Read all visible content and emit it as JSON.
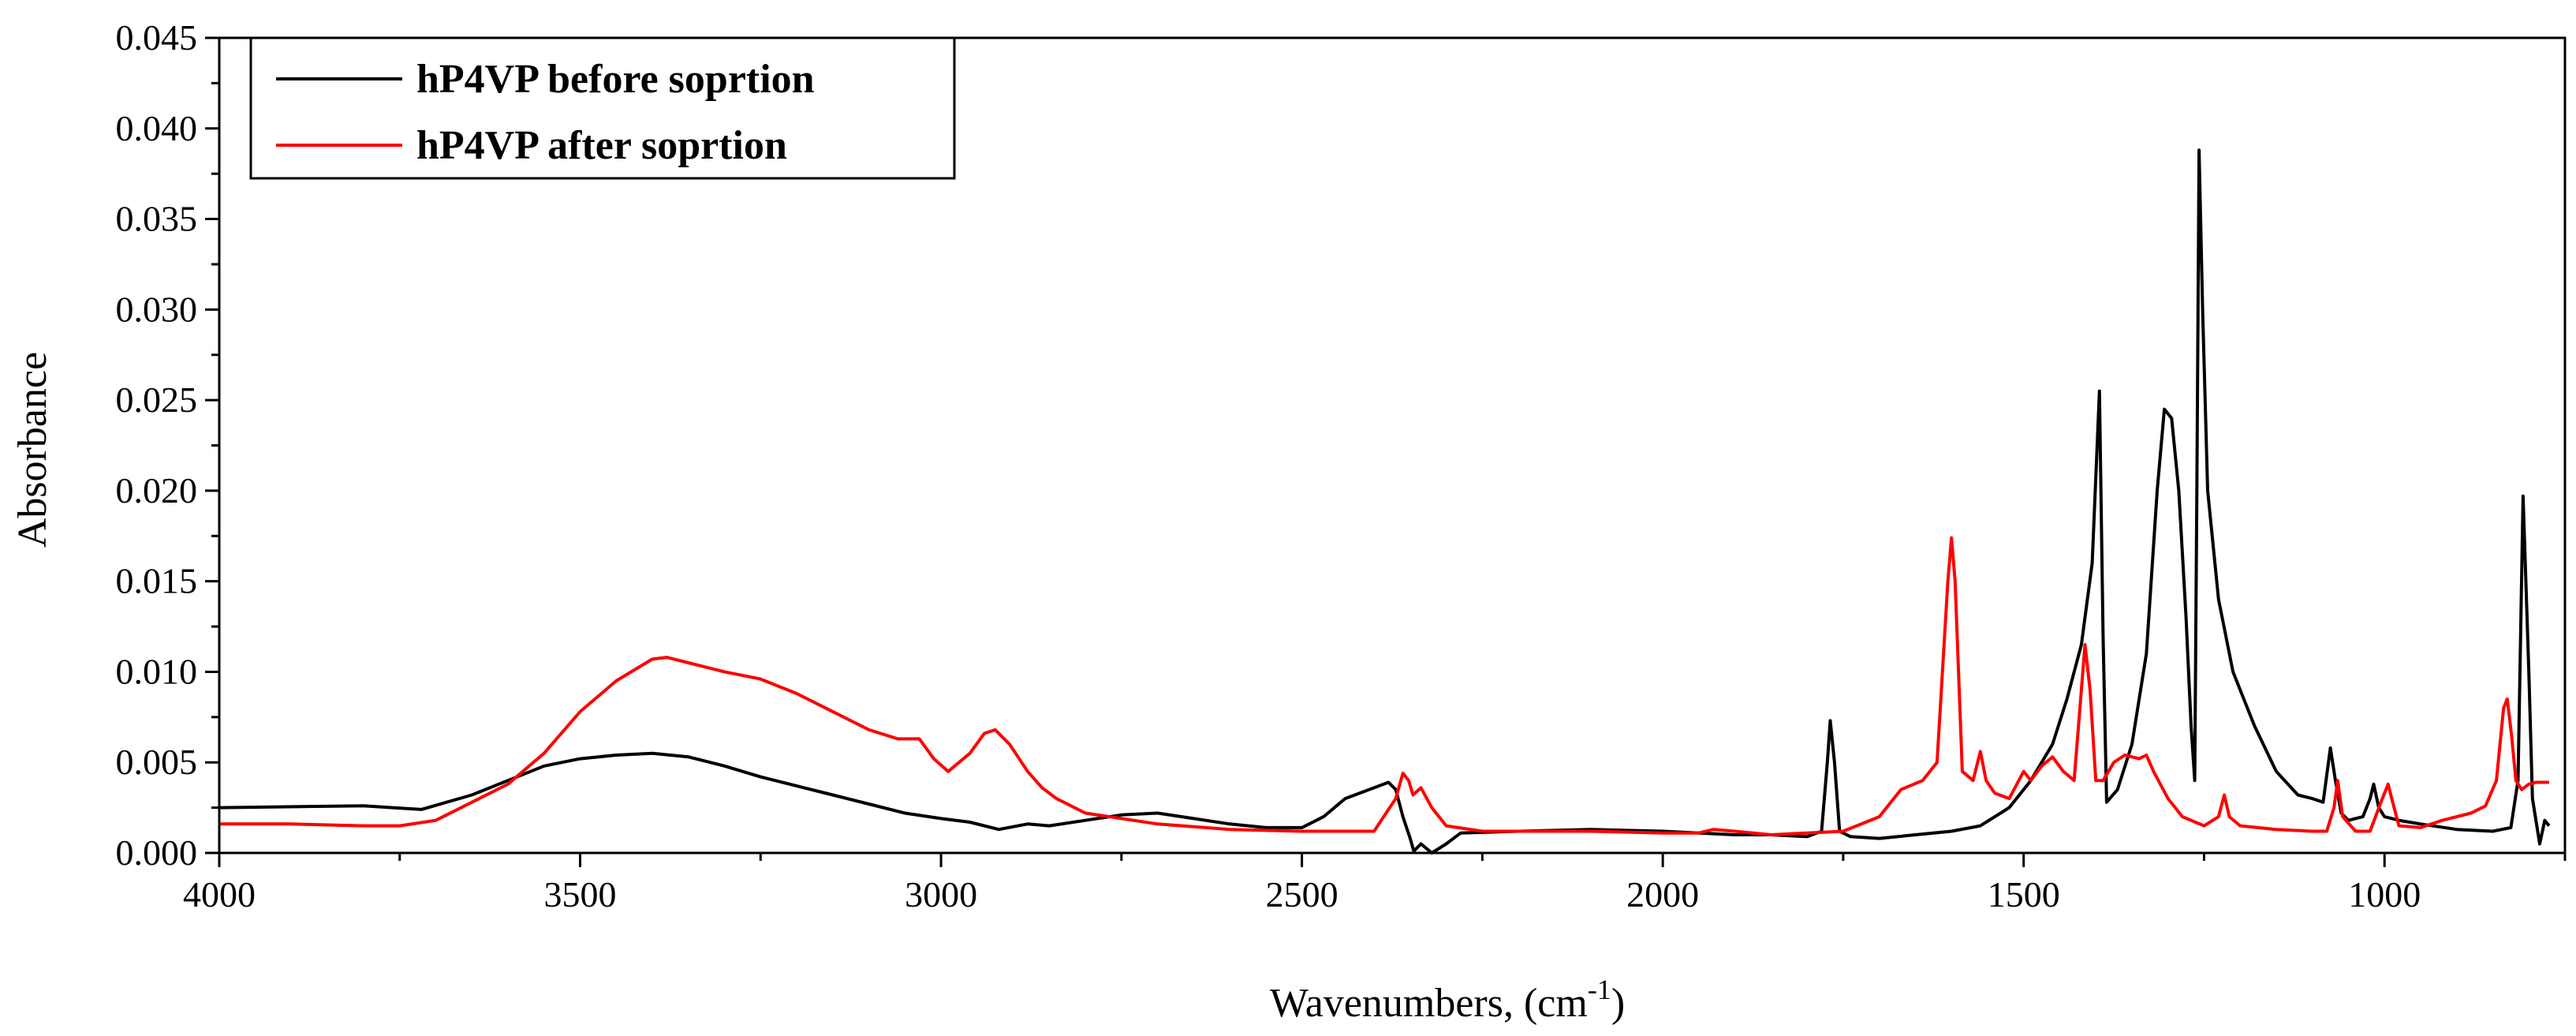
{
  "chart_data": {
    "type": "line",
    "xlabel": "Wavenumbers, (cm",
    "xlabel_sup": "-1",
    "xlabel_suffix": ")",
    "ylabel": "Absorbance",
    "xlim": [
      4000,
      750
    ],
    "ylim": [
      0.0,
      0.045
    ],
    "x_ticks": [
      "4000",
      "3500",
      "3000",
      "2500",
      "2000",
      "1500",
      "1000"
    ],
    "y_ticks": [
      "0.000",
      "0.005",
      "0.010",
      "0.015",
      "0.020",
      "0.025",
      "0.030",
      "0.035",
      "0.040",
      "0.045"
    ],
    "legend_position": "top-left",
    "grid": false,
    "series": [
      {
        "name": "hP4VP before soprtion",
        "color": "#000000",
        "points": [
          [
            4000,
            0.0025
          ],
          [
            3800,
            0.0026
          ],
          [
            3760,
            0.0025
          ],
          [
            3720,
            0.0024
          ],
          [
            3650,
            0.0032
          ],
          [
            3600,
            0.004
          ],
          [
            3550,
            0.0048
          ],
          [
            3500,
            0.0052
          ],
          [
            3450,
            0.0054
          ],
          [
            3400,
            0.0055
          ],
          [
            3350,
            0.0053
          ],
          [
            3300,
            0.0048
          ],
          [
            3250,
            0.0042
          ],
          [
            3200,
            0.0037
          ],
          [
            3150,
            0.0032
          ],
          [
            3100,
            0.0027
          ],
          [
            3050,
            0.0022
          ],
          [
            3000,
            0.0019
          ],
          [
            2960,
            0.0017
          ],
          [
            2920,
            0.0013
          ],
          [
            2880,
            0.0016
          ],
          [
            2850,
            0.0015
          ],
          [
            2800,
            0.0018
          ],
          [
            2750,
            0.0021
          ],
          [
            2700,
            0.0022
          ],
          [
            2650,
            0.0019
          ],
          [
            2600,
            0.0016
          ],
          [
            2550,
            0.0014
          ],
          [
            2500,
            0.0014
          ],
          [
            2470,
            0.002
          ],
          [
            2440,
            0.003
          ],
          [
            2400,
            0.0036
          ],
          [
            2380,
            0.0039
          ],
          [
            2370,
            0.0035
          ],
          [
            2360,
            0.002
          ],
          [
            2350,
            0.0008
          ],
          [
            2345,
            0.0001
          ],
          [
            2335,
            0.0005
          ],
          [
            2320,
            0.0
          ],
          [
            2300,
            0.0005
          ],
          [
            2280,
            0.0011
          ],
          [
            2200,
            0.0012
          ],
          [
            2100,
            0.0013
          ],
          [
            2000,
            0.0012
          ],
          [
            1950,
            0.0011
          ],
          [
            1900,
            0.001
          ],
          [
            1850,
            0.001
          ],
          [
            1800,
            0.0009
          ],
          [
            1780,
            0.0012
          ],
          [
            1772,
            0.005
          ],
          [
            1768,
            0.0073
          ],
          [
            1762,
            0.005
          ],
          [
            1755,
            0.0012
          ],
          [
            1740,
            0.0009
          ],
          [
            1700,
            0.0008
          ],
          [
            1650,
            0.001
          ],
          [
            1600,
            0.0012
          ],
          [
            1560,
            0.0015
          ],
          [
            1520,
            0.0025
          ],
          [
            1490,
            0.004
          ],
          [
            1460,
            0.006
          ],
          [
            1440,
            0.0085
          ],
          [
            1420,
            0.0115
          ],
          [
            1405,
            0.016
          ],
          [
            1395,
            0.0255
          ],
          [
            1390,
            0.012
          ],
          [
            1385,
            0.0028
          ],
          [
            1370,
            0.0035
          ],
          [
            1350,
            0.006
          ],
          [
            1330,
            0.011
          ],
          [
            1315,
            0.02
          ],
          [
            1305,
            0.0245
          ],
          [
            1295,
            0.024
          ],
          [
            1285,
            0.02
          ],
          [
            1275,
            0.013
          ],
          [
            1268,
            0.007
          ],
          [
            1263,
            0.004
          ],
          [
            1260,
            0.02
          ],
          [
            1257,
            0.0388
          ],
          [
            1252,
            0.03
          ],
          [
            1245,
            0.02
          ],
          [
            1230,
            0.014
          ],
          [
            1210,
            0.01
          ],
          [
            1180,
            0.007
          ],
          [
            1150,
            0.0045
          ],
          [
            1120,
            0.0032
          ],
          [
            1100,
            0.003
          ],
          [
            1085,
            0.0028
          ],
          [
            1075,
            0.0058
          ],
          [
            1068,
            0.004
          ],
          [
            1060,
            0.0022
          ],
          [
            1050,
            0.0018
          ],
          [
            1030,
            0.002
          ],
          [
            1020,
            0.003
          ],
          [
            1015,
            0.0038
          ],
          [
            1008,
            0.0025
          ],
          [
            1000,
            0.002
          ],
          [
            980,
            0.0018
          ],
          [
            950,
            0.0016
          ],
          [
            900,
            0.0013
          ],
          [
            850,
            0.0012
          ],
          [
            825,
            0.0014
          ],
          [
            815,
            0.004
          ],
          [
            808,
            0.0197
          ],
          [
            800,
            0.01
          ],
          [
            795,
            0.003
          ],
          [
            785,
            0.0005
          ],
          [
            778,
            0.0018
          ],
          [
            772,
            0.0015
          ]
        ]
      },
      {
        "name": "hP4VP after soprtion",
        "color": "#ff0000",
        "points": [
          [
            4000,
            0.0016
          ],
          [
            3900,
            0.0016
          ],
          [
            3800,
            0.0015
          ],
          [
            3750,
            0.0015
          ],
          [
            3700,
            0.0018
          ],
          [
            3650,
            0.0028
          ],
          [
            3600,
            0.0038
          ],
          [
            3550,
            0.0055
          ],
          [
            3500,
            0.0078
          ],
          [
            3450,
            0.0095
          ],
          [
            3400,
            0.0107
          ],
          [
            3380,
            0.0108
          ],
          [
            3350,
            0.0105
          ],
          [
            3300,
            0.01
          ],
          [
            3250,
            0.0096
          ],
          [
            3200,
            0.0088
          ],
          [
            3150,
            0.0078
          ],
          [
            3100,
            0.0068
          ],
          [
            3060,
            0.0063
          ],
          [
            3030,
            0.0063
          ],
          [
            3010,
            0.0052
          ],
          [
            2990,
            0.0045
          ],
          [
            2960,
            0.0055
          ],
          [
            2940,
            0.0066
          ],
          [
            2925,
            0.0068
          ],
          [
            2905,
            0.006
          ],
          [
            2880,
            0.0045
          ],
          [
            2860,
            0.0036
          ],
          [
            2840,
            0.003
          ],
          [
            2800,
            0.0022
          ],
          [
            2750,
            0.0019
          ],
          [
            2700,
            0.0016
          ],
          [
            2600,
            0.0013
          ],
          [
            2500,
            0.0012
          ],
          [
            2400,
            0.0012
          ],
          [
            2370,
            0.003
          ],
          [
            2360,
            0.0044
          ],
          [
            2352,
            0.004
          ],
          [
            2346,
            0.0032
          ],
          [
            2335,
            0.0036
          ],
          [
            2320,
            0.0025
          ],
          [
            2300,
            0.0015
          ],
          [
            2250,
            0.0012
          ],
          [
            2200,
            0.0012
          ],
          [
            2100,
            0.0012
          ],
          [
            2000,
            0.0011
          ],
          [
            1950,
            0.0011
          ],
          [
            1930,
            0.0013
          ],
          [
            1900,
            0.0012
          ],
          [
            1850,
            0.001
          ],
          [
            1800,
            0.0011
          ],
          [
            1750,
            0.0012
          ],
          [
            1700,
            0.002
          ],
          [
            1670,
            0.0035
          ],
          [
            1640,
            0.004
          ],
          [
            1620,
            0.005
          ],
          [
            1605,
            0.015
          ],
          [
            1600,
            0.0174
          ],
          [
            1595,
            0.015
          ],
          [
            1585,
            0.0045
          ],
          [
            1570,
            0.004
          ],
          [
            1560,
            0.0056
          ],
          [
            1552,
            0.004
          ],
          [
            1540,
            0.0033
          ],
          [
            1520,
            0.003
          ],
          [
            1500,
            0.0045
          ],
          [
            1490,
            0.004
          ],
          [
            1475,
            0.0048
          ],
          [
            1460,
            0.0053
          ],
          [
            1445,
            0.0045
          ],
          [
            1430,
            0.004
          ],
          [
            1420,
            0.009
          ],
          [
            1415,
            0.0115
          ],
          [
            1408,
            0.009
          ],
          [
            1400,
            0.004
          ],
          [
            1390,
            0.004
          ],
          [
            1375,
            0.005
          ],
          [
            1360,
            0.0054
          ],
          [
            1340,
            0.0052
          ],
          [
            1330,
            0.0054
          ],
          [
            1320,
            0.0045
          ],
          [
            1300,
            0.003
          ],
          [
            1280,
            0.002
          ],
          [
            1250,
            0.0015
          ],
          [
            1230,
            0.002
          ],
          [
            1222,
            0.0032
          ],
          [
            1215,
            0.002
          ],
          [
            1200,
            0.0015
          ],
          [
            1150,
            0.0013
          ],
          [
            1100,
            0.0012
          ],
          [
            1080,
            0.0012
          ],
          [
            1070,
            0.0025
          ],
          [
            1065,
            0.004
          ],
          [
            1058,
            0.002
          ],
          [
            1040,
            0.0012
          ],
          [
            1020,
            0.0012
          ],
          [
            1005,
            0.0028
          ],
          [
            995,
            0.0038
          ],
          [
            990,
            0.003
          ],
          [
            980,
            0.0015
          ],
          [
            950,
            0.0014
          ],
          [
            920,
            0.0018
          ],
          [
            880,
            0.0022
          ],
          [
            860,
            0.0026
          ],
          [
            845,
            0.004
          ],
          [
            835,
            0.008
          ],
          [
            830,
            0.0085
          ],
          [
            824,
            0.0065
          ],
          [
            818,
            0.004
          ],
          [
            810,
            0.0035
          ],
          [
            800,
            0.0038
          ],
          [
            790,
            0.0039
          ],
          [
            772,
            0.0039
          ]
        ]
      }
    ]
  }
}
